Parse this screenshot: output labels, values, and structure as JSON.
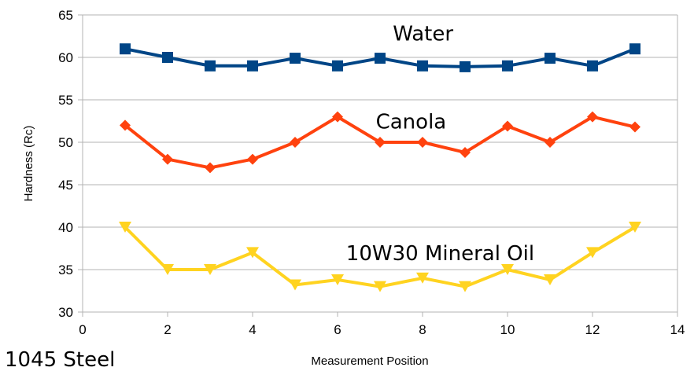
{
  "caption": "1045 Steel",
  "chart_data": {
    "type": "line",
    "title": "",
    "xlabel": "Measurement Position",
    "ylabel": "Hardness (Rc)",
    "xlim": [
      0,
      14
    ],
    "ylim": [
      30,
      65
    ],
    "xticks": [
      0,
      2,
      4,
      6,
      8,
      10,
      12,
      14
    ],
    "yticks": [
      30,
      35,
      40,
      45,
      50,
      55,
      60,
      65
    ],
    "grid": "horizontal",
    "legend": "none (inline labels)",
    "x": [
      1,
      2,
      3,
      4,
      5,
      6,
      7,
      8,
      9,
      10,
      11,
      12,
      13
    ],
    "series": [
      {
        "name": "Water",
        "color": "#004586",
        "marker": "square",
        "label": "Water",
        "label_pos": [
          7.3,
          62
        ],
        "values": [
          61,
          60,
          59,
          59,
          59.9,
          59,
          59.9,
          59,
          58.9,
          59,
          59.9,
          59,
          61
        ]
      },
      {
        "name": "Canola",
        "color": "#ff420e",
        "marker": "diamond",
        "label": "Canola",
        "label_pos": [
          6.9,
          51.6
        ],
        "values": [
          52,
          48,
          47,
          48,
          50,
          53,
          50,
          50,
          48.8,
          51.9,
          50,
          53,
          51.8
        ]
      },
      {
        "name": "10W30 Mineral Oil",
        "color": "#ffd320",
        "marker": "triangle-down",
        "label": "10W30 Mineral Oil",
        "label_pos": [
          6.2,
          36.1
        ],
        "values": [
          40,
          35,
          35,
          37,
          33.2,
          33.8,
          33,
          34,
          33,
          35,
          33.8,
          37,
          40
        ]
      }
    ]
  }
}
